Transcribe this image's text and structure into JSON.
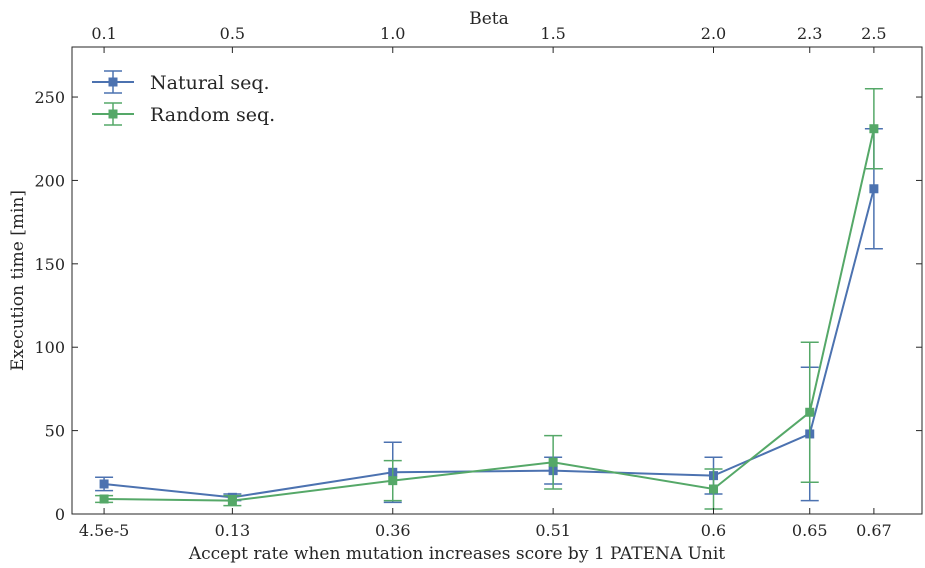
{
  "chart_data": {
    "type": "line",
    "title": "",
    "xlabel": "Accept rate when mutation increases score by 1 PATENA Unit",
    "ylabel": "Execution time [min]",
    "top_xlabel": "Beta",
    "categories": [
      "4.5e-5",
      "0.13",
      "0.36",
      "0.51",
      "0.6",
      "0.65",
      "0.67"
    ],
    "beta": [
      0.1,
      0.5,
      1.0,
      1.5,
      2.0,
      2.3,
      2.5
    ],
    "beta_labels": [
      "0.1",
      "0.5",
      "1.0",
      "1.5",
      "2.0",
      "2.3",
      "2.5"
    ],
    "ylim": [
      0,
      280
    ],
    "yticks": [
      0,
      50,
      100,
      150,
      200,
      250
    ],
    "xlim": [
      0,
      2.65
    ],
    "grid": false,
    "legend_position": "top-left",
    "series": [
      {
        "name": "Natural seq.",
        "color": "#4c72b0",
        "marker": "square",
        "values": [
          18,
          10,
          25,
          26,
          23,
          48,
          195
        ],
        "errors": [
          4,
          2,
          18,
          8,
          11,
          40,
          36
        ]
      },
      {
        "name": "Random seq.",
        "color": "#55a868",
        "marker": "square",
        "values": [
          9,
          8,
          20,
          31,
          15,
          61,
          231
        ],
        "errors": [
          2,
          3,
          12,
          16,
          12,
          42,
          24
        ]
      }
    ]
  }
}
